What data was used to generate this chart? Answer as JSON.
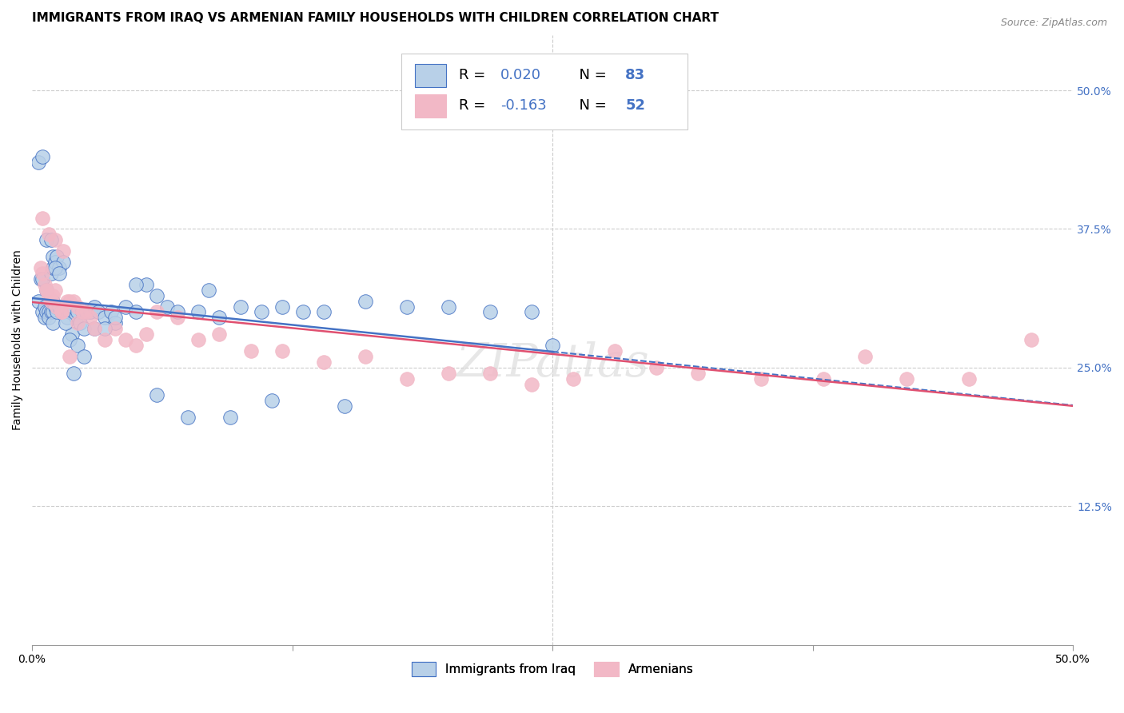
{
  "title": "IMMIGRANTS FROM IRAQ VS ARMENIAN FAMILY HOUSEHOLDS WITH CHILDREN CORRELATION CHART",
  "source": "Source: ZipAtlas.com",
  "ylabel": "Family Households with Children",
  "legend_iraq": "Immigrants from Iraq",
  "legend_armenian": "Armenians",
  "R_iraq": "0.020",
  "N_iraq": "83",
  "R_armenian": "-0.163",
  "N_armenian": "52",
  "color_iraq_fill": "#b8d0e8",
  "color_armenian_fill": "#f2b8c6",
  "color_line_iraq": "#4472c4",
  "color_line_armenian": "#e05070",
  "color_text_blue": "#4472c4",
  "background_color": "#ffffff",
  "grid_color": "#cccccc",
  "iraq_x": [
    0.3,
    0.4,
    0.5,
    0.5,
    0.6,
    0.6,
    0.7,
    0.7,
    0.8,
    0.8,
    0.9,
    0.9,
    1.0,
    1.0,
    1.0,
    1.0,
    1.0,
    1.1,
    1.1,
    1.2,
    1.2,
    1.3,
    1.3,
    1.4,
    1.5,
    1.5,
    1.6,
    1.7,
    1.8,
    1.9,
    2.0,
    2.1,
    2.2,
    2.3,
    2.4,
    2.5,
    2.6,
    2.8,
    3.0,
    3.2,
    3.5,
    3.8,
    4.0,
    4.5,
    5.0,
    5.5,
    6.0,
    6.5,
    7.0,
    8.0,
    8.5,
    9.0,
    10.0,
    11.0,
    12.0,
    13.0,
    14.0,
    16.0,
    18.0,
    20.0,
    22.0,
    24.0,
    25.0,
    0.3,
    0.5,
    0.7,
    0.9,
    1.1,
    1.3,
    1.6,
    1.8,
    2.0,
    2.2,
    2.5,
    3.0,
    3.5,
    4.0,
    5.0,
    6.0,
    7.5,
    9.5,
    11.5,
    15.0
  ],
  "iraq_y": [
    31.0,
    33.0,
    33.0,
    30.0,
    30.5,
    29.5,
    30.0,
    32.0,
    30.0,
    29.5,
    30.0,
    33.5,
    30.0,
    29.0,
    31.0,
    34.0,
    35.0,
    30.5,
    34.5,
    30.0,
    35.0,
    30.5,
    34.0,
    30.0,
    30.0,
    34.5,
    30.5,
    29.5,
    30.0,
    28.0,
    30.5,
    29.5,
    30.0,
    29.0,
    30.0,
    28.5,
    30.0,
    30.0,
    30.5,
    30.0,
    29.5,
    30.0,
    29.0,
    30.5,
    30.0,
    32.5,
    31.5,
    30.5,
    30.0,
    30.0,
    32.0,
    29.5,
    30.5,
    30.0,
    30.5,
    30.0,
    30.0,
    31.0,
    30.5,
    30.5,
    30.0,
    30.0,
    27.0,
    43.5,
    44.0,
    36.5,
    36.5,
    34.0,
    33.5,
    29.0,
    27.5,
    24.5,
    27.0,
    26.0,
    28.5,
    28.5,
    29.5,
    32.5,
    22.5,
    20.5,
    20.5,
    22.0,
    21.5
  ],
  "armenian_x": [
    0.4,
    0.5,
    0.6,
    0.7,
    0.8,
    0.9,
    1.0,
    1.1,
    1.2,
    1.4,
    1.5,
    1.7,
    1.8,
    2.0,
    2.2,
    2.4,
    2.6,
    2.8,
    3.0,
    3.5,
    4.0,
    4.5,
    5.0,
    5.5,
    6.0,
    7.0,
    8.0,
    9.0,
    10.5,
    12.0,
    14.0,
    16.0,
    18.0,
    20.0,
    22.0,
    24.0,
    26.0,
    28.0,
    30.0,
    32.0,
    35.0,
    38.0,
    40.0,
    42.0,
    45.0,
    48.0,
    0.5,
    0.8,
    1.1,
    1.4,
    1.8,
    2.2
  ],
  "armenian_y": [
    34.0,
    33.5,
    32.5,
    32.0,
    31.5,
    31.0,
    31.5,
    32.0,
    30.5,
    30.0,
    35.5,
    31.0,
    31.0,
    31.0,
    30.5,
    30.0,
    30.0,
    29.5,
    28.5,
    27.5,
    28.5,
    27.5,
    27.0,
    28.0,
    30.0,
    29.5,
    27.5,
    28.0,
    26.5,
    26.5,
    25.5,
    26.0,
    24.0,
    24.5,
    24.5,
    23.5,
    24.0,
    26.5,
    25.0,
    24.5,
    24.0,
    24.0,
    26.0,
    24.0,
    24.0,
    27.5,
    38.5,
    37.0,
    36.5,
    30.0,
    26.0,
    29.0
  ],
  "xlim": [
    0,
    50
  ],
  "ylim": [
    0,
    55
  ],
  "xticks": [
    0,
    12.5,
    25.0,
    37.5,
    50.0
  ],
  "yticks_right": [
    12.5,
    25.0,
    37.5,
    50.0
  ],
  "watermark": "ZIPatlas"
}
